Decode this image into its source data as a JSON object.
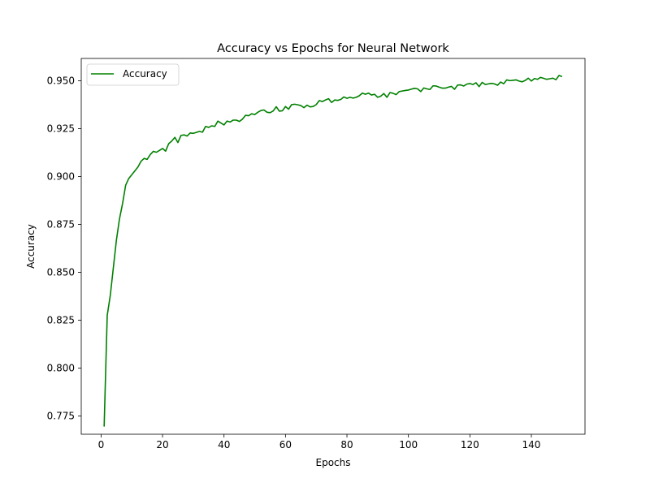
{
  "chart_data": {
    "type": "line",
    "title": "Accuracy vs Epochs for Neural Network",
    "xlabel": "Epochs",
    "ylabel": "Accuracy",
    "xlim": [
      -6.45,
      157.45
    ],
    "ylim": [
      0.7655,
      0.9617
    ],
    "xticks": [
      0,
      20,
      40,
      60,
      80,
      100,
      120,
      140
    ],
    "yticks": [
      0.775,
      0.8,
      0.825,
      0.85,
      0.875,
      0.9,
      0.925,
      0.95
    ],
    "ytick_labels": [
      "0.775",
      "0.800",
      "0.825",
      "0.850",
      "0.875",
      "0.900",
      "0.925",
      "0.950"
    ],
    "grid": false,
    "legend_position": "upper-left",
    "series": [
      {
        "name": "Accuracy",
        "color": "#008000",
        "x": [
          1,
          2,
          3,
          4,
          5,
          6,
          7,
          8,
          9,
          10,
          11,
          12,
          13,
          14,
          15,
          16,
          17,
          18,
          19,
          20,
          21,
          22,
          23,
          24,
          25,
          26,
          27,
          28,
          29,
          30,
          31,
          32,
          33,
          34,
          35,
          36,
          37,
          38,
          39,
          40,
          41,
          42,
          43,
          44,
          45,
          46,
          47,
          48,
          49,
          50,
          51,
          52,
          53,
          54,
          55,
          56,
          57,
          58,
          59,
          60,
          61,
          62,
          63,
          64,
          65,
          66,
          67,
          68,
          69,
          70,
          71,
          72,
          73,
          74,
          75,
          76,
          77,
          78,
          79,
          80,
          81,
          82,
          83,
          84,
          85,
          86,
          87,
          88,
          89,
          90,
          91,
          92,
          93,
          94,
          95,
          96,
          97,
          98,
          99,
          100,
          101,
          102,
          103,
          104,
          105,
          106,
          107,
          108,
          109,
          110,
          111,
          112,
          113,
          114,
          115,
          116,
          117,
          118,
          119,
          120,
          121,
          122,
          123,
          124,
          125,
          126,
          127,
          128,
          129,
          130,
          131,
          132,
          133,
          134,
          135,
          136,
          137,
          138,
          139,
          140,
          141,
          142,
          143,
          144,
          145,
          146,
          147,
          148,
          149,
          150
        ],
        "values": [
          0.7695,
          0.8275,
          0.838,
          0.8525,
          0.867,
          0.878,
          0.886,
          0.8955,
          0.899,
          0.901,
          0.903,
          0.905,
          0.908,
          0.9095,
          0.909,
          0.9115,
          0.9132,
          0.9127,
          0.9137,
          0.9147,
          0.9133,
          0.9172,
          0.9186,
          0.9205,
          0.9178,
          0.9215,
          0.9218,
          0.9212,
          0.9228,
          0.9226,
          0.9231,
          0.9236,
          0.9232,
          0.9262,
          0.9257,
          0.9265,
          0.9262,
          0.929,
          0.928,
          0.927,
          0.929,
          0.9285,
          0.9295,
          0.9295,
          0.9288,
          0.93,
          0.932,
          0.9318,
          0.9328,
          0.9324,
          0.9336,
          0.9345,
          0.9348,
          0.9336,
          0.9334,
          0.9343,
          0.9365,
          0.9342,
          0.9344,
          0.9366,
          0.9352,
          0.9376,
          0.9378,
          0.9375,
          0.9371,
          0.936,
          0.9373,
          0.9364,
          0.9366,
          0.9376,
          0.9397,
          0.9392,
          0.94,
          0.9407,
          0.9387,
          0.94,
          0.9398,
          0.9403,
          0.9416,
          0.9409,
          0.9414,
          0.941,
          0.9414,
          0.9422,
          0.9436,
          0.943,
          0.9436,
          0.9426,
          0.943,
          0.9414,
          0.942,
          0.9434,
          0.9414,
          0.9439,
          0.9435,
          0.9428,
          0.9444,
          0.9447,
          0.945,
          0.9452,
          0.9457,
          0.9461,
          0.9458,
          0.9444,
          0.9463,
          0.9458,
          0.9455,
          0.9474,
          0.9473,
          0.9467,
          0.9462,
          0.9462,
          0.9467,
          0.9471,
          0.9456,
          0.9478,
          0.9479,
          0.9473,
          0.9483,
          0.9486,
          0.9481,
          0.949,
          0.947,
          0.9492,
          0.9481,
          0.9484,
          0.9487,
          0.9484,
          0.9477,
          0.9494,
          0.9485,
          0.9505,
          0.9501,
          0.9503,
          0.9505,
          0.9499,
          0.9495,
          0.9502,
          0.9514,
          0.9499,
          0.9512,
          0.9508,
          0.9518,
          0.9513,
          0.9508,
          0.9511,
          0.9514,
          0.9506,
          0.9528,
          0.9522
        ]
      }
    ]
  }
}
